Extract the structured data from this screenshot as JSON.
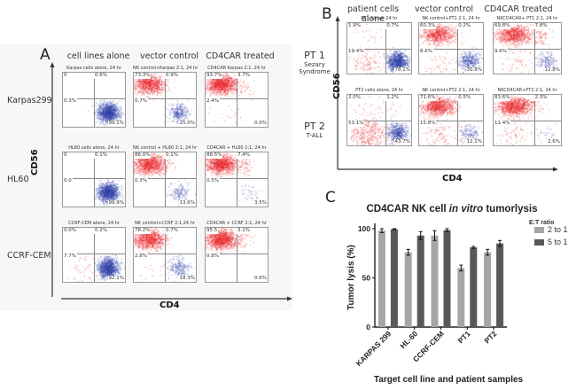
{
  "panel_a": {
    "letter": "A",
    "columns": [
      "cell lines alone",
      "vector control",
      "CD4CAR treated"
    ],
    "rows": [
      "Karpas299",
      "HL60",
      "CCRF-CEM"
    ],
    "y_axis": "CD56",
    "x_axis": "CD4",
    "plots": [
      [
        {
          "title": "Karpas cells alone, 24 hr",
          "ul": "0",
          "ur": "0.6%",
          "ll": "0.3%",
          "lr": "99.1%"
        },
        {
          "title": "NK control+Karpas 2:1, 24 hr",
          "ul": "73.3%",
          "ur": "0.9%",
          "ll": "0.7%",
          "lr": "25.0%"
        },
        {
          "title": "CD4CAR Karpas 2:1, 24 hr",
          "ul": "93.7%",
          "ur": "3.7%",
          "ll": "2.4%",
          "lr": "0.0%"
        }
      ],
      [
        {
          "title": "HL60 cells alone, 24 hr",
          "ul": "0",
          "ur": "0.1%",
          "ll": "0.0",
          "lr": "99.9%"
        },
        {
          "title": "NK control + HL60 2:1, 24 hr",
          "ul": "86.0%",
          "ur": "0.1%",
          "ll": "0.3%",
          "lr": "13.6%"
        },
        {
          "title": "CD4CAR + HL60 2:1, 24 hr",
          "ul": "88.5%",
          "ur": "7.4%",
          "ll": "0.5%",
          "lr": "3.5%"
        }
      ],
      [
        {
          "title": "CCRF-CEM alone, 24 hr",
          "ul": "0.0%",
          "ur": "0.2%",
          "ll": "7.7%",
          "lr": "92.1%"
        },
        {
          "title": "NK control+CCRF 2:1,24 hr",
          "ul": "78.2%",
          "ur": "0.7%",
          "ll": "2.8%",
          "lr": "18.3%"
        },
        {
          "title": "CD4CAR + CCRF 2:1, 24 hr",
          "ul": "95.5",
          "ur": "3.1%",
          "ll": "0.8%",
          "lr": "0.6%"
        }
      ]
    ]
  },
  "panel_b": {
    "letter": "B",
    "columns": [
      "patient cells alone",
      "vector control",
      "CD4CAR treated"
    ],
    "rows": [
      {
        "label": "PT 1",
        "sub": "Sezary Syndrome"
      },
      {
        "label": "PT 2",
        "sub": "T-ALL"
      }
    ],
    "y_axis": "CD56",
    "x_axis": "CD4",
    "plots": [
      [
        {
          "title": "PT1 alone, 24 hr",
          "ul": "1.9%",
          "ur": "0.7%",
          "ll": "19.4%",
          "lr": "78.1%"
        },
        {
          "title": "NK control+PT1 2:1, 24 hr",
          "ul": "60.3%",
          "ur": "0.2%",
          "ll": "8.6%",
          "lr": "30.8%"
        },
        {
          "title": "NKCD4CAR+ PT1 2:1, 24 hr",
          "ul": "69.8%",
          "ur": "7.8%",
          "ll": "9.6%",
          "lr": "12.8%"
        }
      ],
      [
        {
          "title": "PT2 cells alone, 24 hr",
          "ul": "2.0%",
          "ur": "1.2%",
          "ll": "53.1%",
          "lr": "43.7%"
        },
        {
          "title": "NK control+PT2 2:1, 24 hr",
          "ul": "71.6%",
          "ur": "0.5%",
          "ll": "15.8%",
          "lr": "12.1%"
        },
        {
          "title": "NKCD4CAR+PT2 2:1, 24 hr",
          "ul": "83.6%",
          "ur": "2.3%",
          "ll": "11.4%",
          "lr": "2.6%"
        }
      ]
    ]
  },
  "panel_c": {
    "letter": "C",
    "title_pre": "CD4CAR NK cell ",
    "title_italic": "in vitro",
    "title_post": " tumorlysis"
  },
  "colors": {
    "nk_red": "#e8262b",
    "tumor_blue": "#2f3fa8",
    "bar_light": "#a6a6a6",
    "bar_dark": "#595959"
  },
  "chart_data": {
    "type": "bar",
    "title": "CD4CAR NK cell in vitro tumorlysis",
    "xlabel": "Target cell line and patient samples",
    "ylabel": "Tumor lysis (%)",
    "ylim": [
      0,
      100
    ],
    "yticks": [
      0,
      50,
      100
    ],
    "categories": [
      "KARPAS 299",
      "HL-60",
      "CCRF-CEM",
      "PT1",
      "PT2"
    ],
    "legend_title": "E:T ratio",
    "legend_position": "top-right",
    "series": [
      {
        "name": "2 to 1",
        "values": [
          98,
          76,
          93,
          60,
          76
        ],
        "errors": [
          2,
          3,
          5,
          3,
          3
        ]
      },
      {
        "name": "5 to 1",
        "values": [
          99.5,
          93,
          98.5,
          81,
          85
        ],
        "errors": [
          0.5,
          4,
          1.5,
          1,
          3
        ]
      }
    ],
    "grid": false
  }
}
